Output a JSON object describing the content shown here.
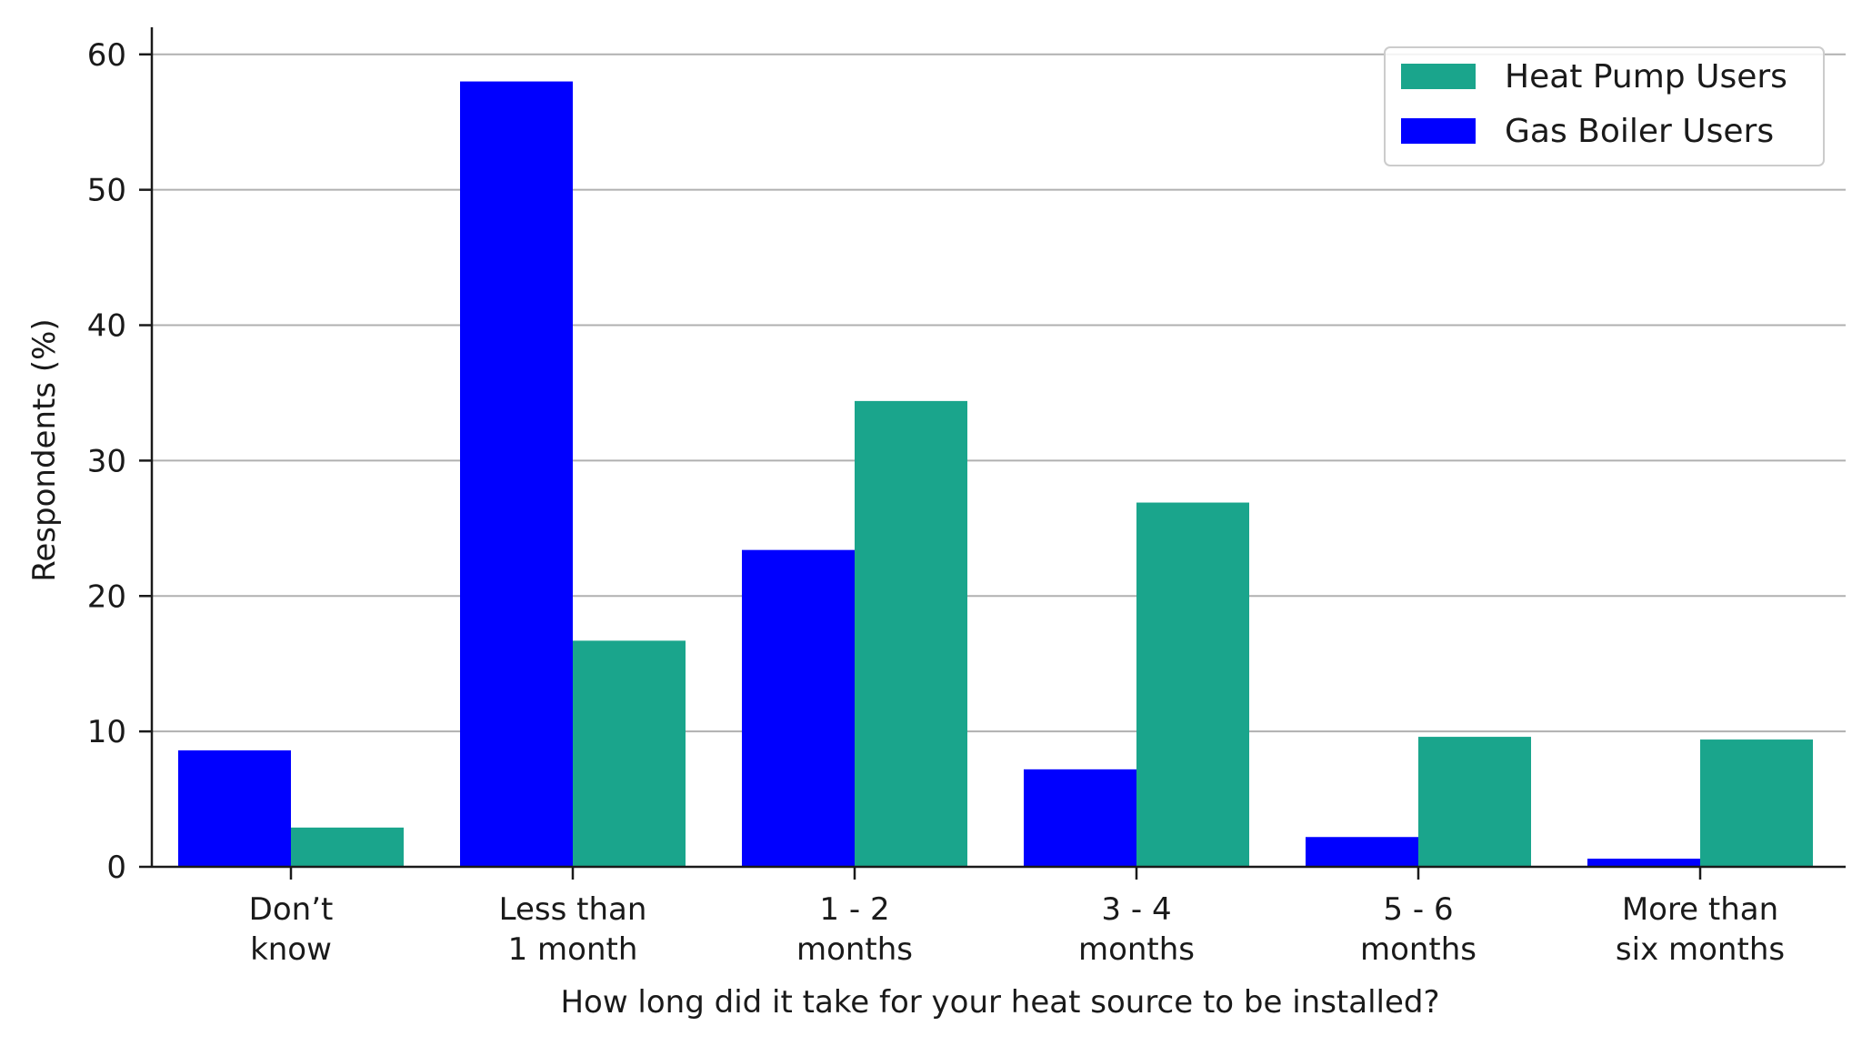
{
  "chart_data": {
    "type": "bar",
    "categories": [
      [
        "Don’t",
        "know"
      ],
      [
        "Less than",
        "1 month"
      ],
      [
        "1 - 2",
        "months"
      ],
      [
        "3 - 4",
        "months"
      ],
      [
        "5 - 6",
        "months"
      ],
      [
        "More than",
        "six months"
      ]
    ],
    "series": [
      {
        "name": "Gas Boiler Users",
        "color": "#0000ff",
        "values": [
          8.6,
          58.0,
          23.4,
          7.2,
          2.2,
          0.6
        ]
      },
      {
        "name": "Heat Pump Users",
        "color": "#1aa58c",
        "values": [
          2.9,
          16.7,
          34.4,
          26.9,
          9.6,
          9.4
        ]
      }
    ],
    "legend_order": [
      "Heat Pump Users",
      "Gas Boiler Users"
    ],
    "legend_position": "top-right",
    "xlabel": "How long did it take for your heat source to be installed?",
    "ylabel": "Respondents (%)",
    "ylim": [
      0,
      62
    ],
    "yticks": [
      0,
      10,
      20,
      30,
      40,
      50,
      60
    ],
    "grid": "horizontal"
  }
}
